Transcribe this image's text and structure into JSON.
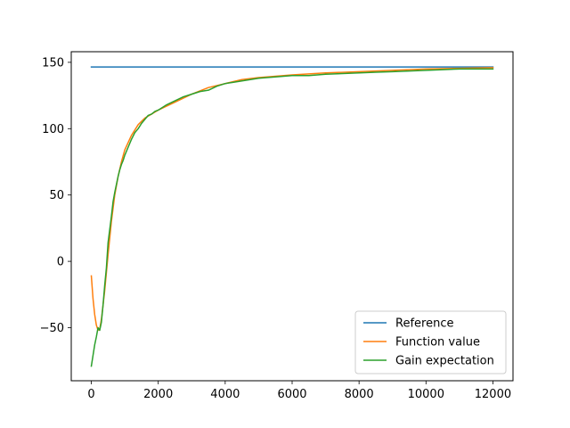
{
  "chart_data": {
    "type": "line",
    "title": "",
    "xlabel": "",
    "ylabel": "",
    "xlim": [
      -600,
      12600
    ],
    "ylim": [
      -90,
      158
    ],
    "xticks": [
      0,
      2000,
      4000,
      6000,
      8000,
      10000,
      12000
    ],
    "xtick_labels": [
      "0",
      "2000",
      "4000",
      "6000",
      "8000",
      "10000",
      "12000"
    ],
    "yticks": [
      -50,
      0,
      50,
      100,
      150
    ],
    "ytick_labels": [
      "−50",
      "0",
      "50",
      "100",
      "150"
    ],
    "grid": false,
    "legend_position": "lower-right",
    "series": [
      {
        "name": "Reference",
        "color": "#1f77b4",
        "x": [
          0,
          12000
        ],
        "y": [
          146.5,
          146.5
        ]
      },
      {
        "name": "Function value",
        "color": "#ff7f0e",
        "x": [
          0,
          50,
          100,
          150,
          200,
          250,
          300,
          400,
          500,
          600,
          700,
          800,
          900,
          1000,
          1200,
          1400,
          1600,
          1800,
          2000,
          2500,
          3000,
          3500,
          4000,
          4500,
          5000,
          6000,
          7000,
          8000,
          9000,
          10000,
          11000,
          12000
        ],
        "y": [
          -11,
          -28,
          -40,
          -48,
          -52,
          -51,
          -44,
          -22,
          5,
          30,
          50,
          64,
          75,
          84,
          95,
          103,
          108,
          111,
          114,
          120,
          126,
          131,
          134,
          137,
          138.5,
          140.5,
          142,
          143,
          144,
          145,
          145.5,
          146
        ]
      },
      {
        "name": "Gain expectation",
        "color": "#2ca02c",
        "x": [
          0,
          50,
          100,
          150,
          200,
          250,
          300,
          350,
          400,
          450,
          500,
          550,
          600,
          650,
          700,
          750,
          800,
          850,
          900,
          950,
          1000,
          1100,
          1200,
          1300,
          1400,
          1500,
          1600,
          1700,
          1800,
          1900,
          2000,
          2250,
          2500,
          2750,
          3000,
          3250,
          3500,
          3750,
          4000,
          4250,
          4500,
          4750,
          5000,
          5500,
          6000,
          6500,
          7000,
          7500,
          8000,
          8500,
          9000,
          9500,
          10000,
          10500,
          11000,
          11500,
          12000
        ],
        "y": [
          -79,
          -71,
          -63,
          -57,
          -50,
          -52,
          -46,
          -33,
          -18,
          -5,
          14,
          24,
          34,
          45,
          52,
          58,
          64,
          69,
          73,
          76,
          80,
          86,
          92,
          97,
          100,
          104,
          107,
          110,
          111,
          113,
          114,
          118,
          121,
          124,
          126,
          128,
          129,
          132,
          134,
          135,
          136,
          137,
          138,
          139,
          140,
          140,
          141,
          141.5,
          142,
          142.5,
          143,
          143.5,
          144,
          144.5,
          145,
          145,
          145
        ]
      }
    ]
  }
}
